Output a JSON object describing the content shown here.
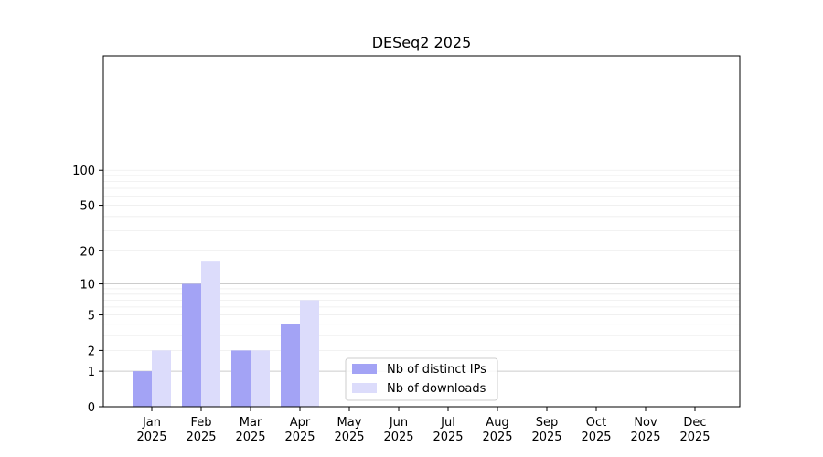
{
  "chart_data": {
    "type": "bar",
    "title": "DESeq2 2025",
    "categories": [
      [
        "Jan",
        "2025"
      ],
      [
        "Feb",
        "2025"
      ],
      [
        "Mar",
        "2025"
      ],
      [
        "Apr",
        "2025"
      ],
      [
        "May",
        "2025"
      ],
      [
        "Jun",
        "2025"
      ],
      [
        "Jul",
        "2025"
      ],
      [
        "Aug",
        "2025"
      ],
      [
        "Sep",
        "2025"
      ],
      [
        "Oct",
        "2025"
      ],
      [
        "Nov",
        "2025"
      ],
      [
        "Dec",
        "2025"
      ]
    ],
    "series": [
      {
        "name": "Nb of distinct IPs",
        "color": "#a3a3f5",
        "values": [
          1,
          10,
          2,
          4,
          0,
          0,
          0,
          0,
          0,
          0,
          0,
          0
        ]
      },
      {
        "name": "Nb of downloads",
        "color": "#dcdcfb",
        "values": [
          2,
          16,
          2,
          7,
          0,
          0,
          0,
          0,
          0,
          0,
          0,
          0
        ]
      }
    ],
    "y_scale": "log(1+y)",
    "y_ticks": [
      0,
      1,
      2,
      5,
      10,
      20,
      50,
      100
    ],
    "ylim": [
      0,
      120
    ],
    "grid": "y (major and minor)",
    "legend_position": "lower-center"
  }
}
